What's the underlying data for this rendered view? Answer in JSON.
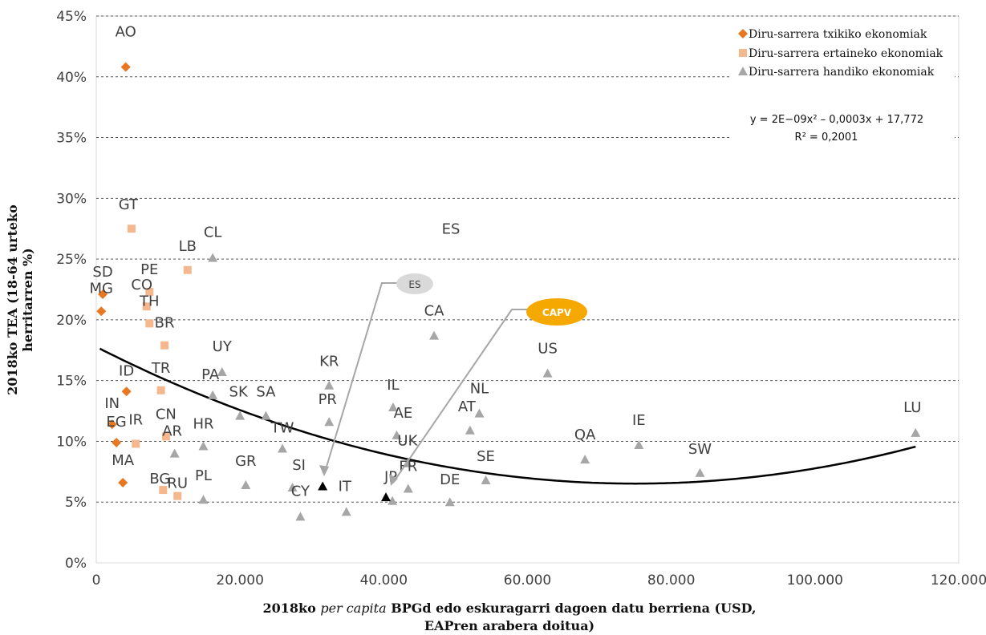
{
  "chart_data": {
    "type": "scatter",
    "x_axis_label": {
      "pre": "2018ko ",
      "italic": "per capita",
      "post": " BPGd edo eskuragarri dagoen datu berriena (USD,",
      "line2": "EAPren arabera doitua)"
    },
    "y_axis_label": "2018ko TEA (18-64 urteko herritarren %)",
    "xlim": [
      0,
      120000
    ],
    "ylim": [
      0,
      45
    ],
    "x_ticks": [
      "0",
      "20.000",
      "40.000",
      "60.000",
      "80.000",
      "100.000",
      "120.000"
    ],
    "y_ticks": [
      "0%",
      "5%",
      "10%",
      "15%",
      "20%",
      "25%",
      "30%",
      "35%",
      "40%",
      "45%"
    ],
    "grid": "horizontal dashed",
    "legend_position": "top-right",
    "colors": {
      "low": "#E87722",
      "middle": "#F5B88E",
      "high": "#A6A6A6",
      "highlight": "#000000",
      "capv": "#F5A800",
      "es_bubble": "#D9D9D9"
    },
    "series": [
      {
        "name": "Diru-sarrera txikiko ekonomiak",
        "marker": "diamond",
        "points": [
          {
            "label": "AO",
            "x": 4100,
            "y": 40.8
          },
          {
            "label": "SD",
            "x": 900,
            "y": 22.1
          },
          {
            "label": "MG",
            "x": 700,
            "y": 20.7
          },
          {
            "label": "ID",
            "x": 4200,
            "y": 14.1
          },
          {
            "label": "IN",
            "x": 2200,
            "y": 11.4
          },
          {
            "label": "EG",
            "x": 2800,
            "y": 9.9
          },
          {
            "label": "MA",
            "x": 3700,
            "y": 6.6
          }
        ]
      },
      {
        "name": "Diru-sarrera ertaineko ekonomiak",
        "marker": "square",
        "points": [
          {
            "label": "GT",
            "x": 4900,
            "y": 27.5
          },
          {
            "label": "LB",
            "x": 12700,
            "y": 24.1
          },
          {
            "label": "PE",
            "x": 7400,
            "y": 22.3
          },
          {
            "label": "CO",
            "x": 7000,
            "y": 21.1
          },
          {
            "label": "TH",
            "x": 7400,
            "y": 19.7
          },
          {
            "label": "BR",
            "x": 9500,
            "y": 17.9
          },
          {
            "label": "TR",
            "x": 9000,
            "y": 14.2
          },
          {
            "label": "CN",
            "x": 9700,
            "y": 10.4
          },
          {
            "label": "IR",
            "x": 5500,
            "y": 9.8
          },
          {
            "label": "BG",
            "x": 9300,
            "y": 6.0
          },
          {
            "label": "RU",
            "x": 11300,
            "y": 5.5
          }
        ]
      },
      {
        "name": "Diru-sarrera handiko ekonomiak",
        "marker": "triangle",
        "points": [
          {
            "label": "CL",
            "x": 16200,
            "y": 25.1
          },
          {
            "label": "UY",
            "x": 17500,
            "y": 15.7
          },
          {
            "label": "PA",
            "x": 16200,
            "y": 13.8
          },
          {
            "label": "SK",
            "x": 20000,
            "y": 12.1
          },
          {
            "label": "SA",
            "x": 23600,
            "y": 12.1
          },
          {
            "label": "HR",
            "x": 14900,
            "y": 9.6
          },
          {
            "label": "AR",
            "x": 10900,
            "y": 9.0
          },
          {
            "label": "GR",
            "x": 20800,
            "y": 6.4
          },
          {
            "label": "PL",
            "x": 14900,
            "y": 5.2
          },
          {
            "label": "TW",
            "x": 25900,
            "y": 9.4
          },
          {
            "label": "SI",
            "x": 27300,
            "y": 6.2
          },
          {
            "label": "CY",
            "x": 28400,
            "y": 3.8
          },
          {
            "label": "IT",
            "x": 34800,
            "y": 4.2
          },
          {
            "label": "KR",
            "x": 32400,
            "y": 14.6
          },
          {
            "label": "PR",
            "x": 32400,
            "y": 11.6
          },
          {
            "label": "IL",
            "x": 41300,
            "y": 12.8
          },
          {
            "label": "AE",
            "x": 41800,
            "y": 10.5
          },
          {
            "label": "UK",
            "x": 43300,
            "y": 8.2
          },
          {
            "label": "FR",
            "x": 43400,
            "y": 6.1
          },
          {
            "label": "JP",
            "x": 41200,
            "y": 5.1
          },
          {
            "label": "DE",
            "x": 49200,
            "y": 5.0
          },
          {
            "label": "CA",
            "x": 47000,
            "y": 18.7
          },
          {
            "label": "NL",
            "x": 53300,
            "y": 12.3
          },
          {
            "label": "AT",
            "x": 52000,
            "y": 10.9
          },
          {
            "label": "SE",
            "x": 54200,
            "y": 6.8
          },
          {
            "label": "US",
            "x": 62800,
            "y": 15.6
          },
          {
            "label": "QA",
            "x": 68000,
            "y": 8.5
          },
          {
            "label": "IE",
            "x": 75500,
            "y": 9.7
          },
          {
            "label": "SW",
            "x": 84000,
            "y": 7.4
          },
          {
            "label": "LU",
            "x": 114000,
            "y": 10.7
          },
          {
            "label": "ES",
            "x": 48900,
            "y": 27.1,
            "no_marker": true
          }
        ]
      }
    ],
    "highlighted_points": [
      {
        "name": "ES",
        "x": 31500,
        "y": 6.3,
        "callout_shape": "grey-ellipse"
      },
      {
        "name": "CAPV",
        "x": 40300,
        "y": 5.4,
        "callout_shape": "gold-ellipse"
      }
    ],
    "trendline": {
      "type": "polynomial",
      "a": 2e-09,
      "b": -0.0003,
      "c": 17.772,
      "equation_text": "y = 2E−09x² – 0,0003x + 17,772",
      "r2_text": "R² = 0,2001"
    }
  }
}
